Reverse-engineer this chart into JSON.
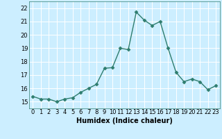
{
  "x": [
    0,
    1,
    2,
    3,
    4,
    5,
    6,
    7,
    8,
    9,
    10,
    11,
    12,
    13,
    14,
    15,
    16,
    17,
    18,
    19,
    20,
    21,
    22,
    23
  ],
  "y": [
    15.4,
    15.2,
    15.2,
    15.0,
    15.2,
    15.3,
    15.7,
    16.0,
    16.3,
    17.5,
    17.55,
    19.0,
    18.9,
    21.7,
    21.1,
    20.7,
    21.0,
    19.0,
    17.2,
    16.5,
    16.7,
    16.5,
    15.9,
    16.2
  ],
  "line_color": "#2e7d6e",
  "marker": "D",
  "marker_size": 2.5,
  "line_width": 1.0,
  "xlabel": "Humidex (Indice chaleur)",
  "xlabel_fontsize": 7,
  "ylim": [
    14.5,
    22.5
  ],
  "xlim": [
    -0.5,
    23.5
  ],
  "yticks": [
    15,
    16,
    17,
    18,
    19,
    20,
    21,
    22
  ],
  "xticks": [
    0,
    1,
    2,
    3,
    4,
    5,
    6,
    7,
    8,
    9,
    10,
    11,
    12,
    13,
    14,
    15,
    16,
    17,
    18,
    19,
    20,
    21,
    22,
    23
  ],
  "bg_color": "#cceeff",
  "grid_color": "#ffffff",
  "tick_fontsize": 6,
  "border_color": "#2e7d6e"
}
